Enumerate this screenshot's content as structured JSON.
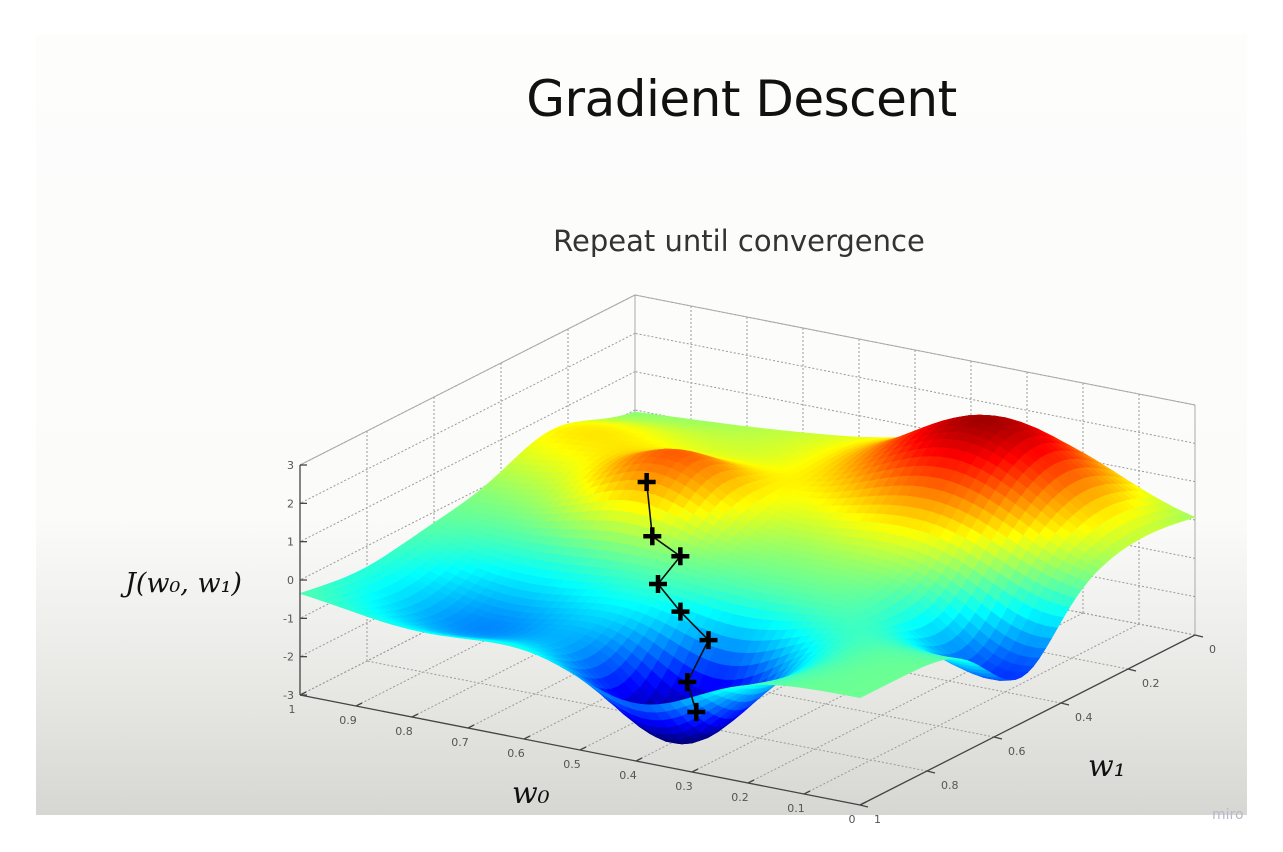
{
  "slide": {
    "title": "Gradient Descent",
    "subtitle": "Repeat until convergence",
    "watermark": "miro"
  },
  "chart_data": {
    "type": "surface",
    "title": "",
    "xlabel": "w₀",
    "ylabel": "w₁",
    "zlabel": "J(w₀, w₁)",
    "xlim": [
      0,
      1
    ],
    "ylim": [
      0,
      1
    ],
    "zlim": [
      -3,
      3
    ],
    "x_ticks": [
      "0",
      "0.1",
      "0.2",
      "0.3",
      "0.4",
      "0.5",
      "0.6",
      "0.7",
      "0.8",
      "0.9",
      "1"
    ],
    "y_ticks": [
      "0",
      "0.2",
      "0.4",
      "0.6",
      "0.8",
      "1"
    ],
    "z_ticks": [
      "-3",
      "-2",
      "-1",
      "0",
      "1",
      "2",
      "3"
    ],
    "colormap": "jet",
    "grid": true,
    "path": {
      "marker": "+",
      "color": "#000000",
      "points": [
        {
          "w0": 0.71,
          "w1": 0.45,
          "J": 0.95
        },
        {
          "w0": 0.67,
          "w1": 0.5,
          "J": -0.13
        },
        {
          "w0": 0.59,
          "w1": 0.55,
          "J": -0.2
        },
        {
          "w0": 0.6,
          "w1": 0.6,
          "J": -0.73
        },
        {
          "w0": 0.53,
          "w1": 0.65,
          "J": -1.03
        },
        {
          "w0": 0.45,
          "w1": 0.7,
          "J": -1.32
        },
        {
          "w0": 0.44,
          "w1": 0.78,
          "J": -2.03
        },
        {
          "w0": 0.4,
          "w1": 0.82,
          "J": -2.52
        }
      ]
    }
  }
}
